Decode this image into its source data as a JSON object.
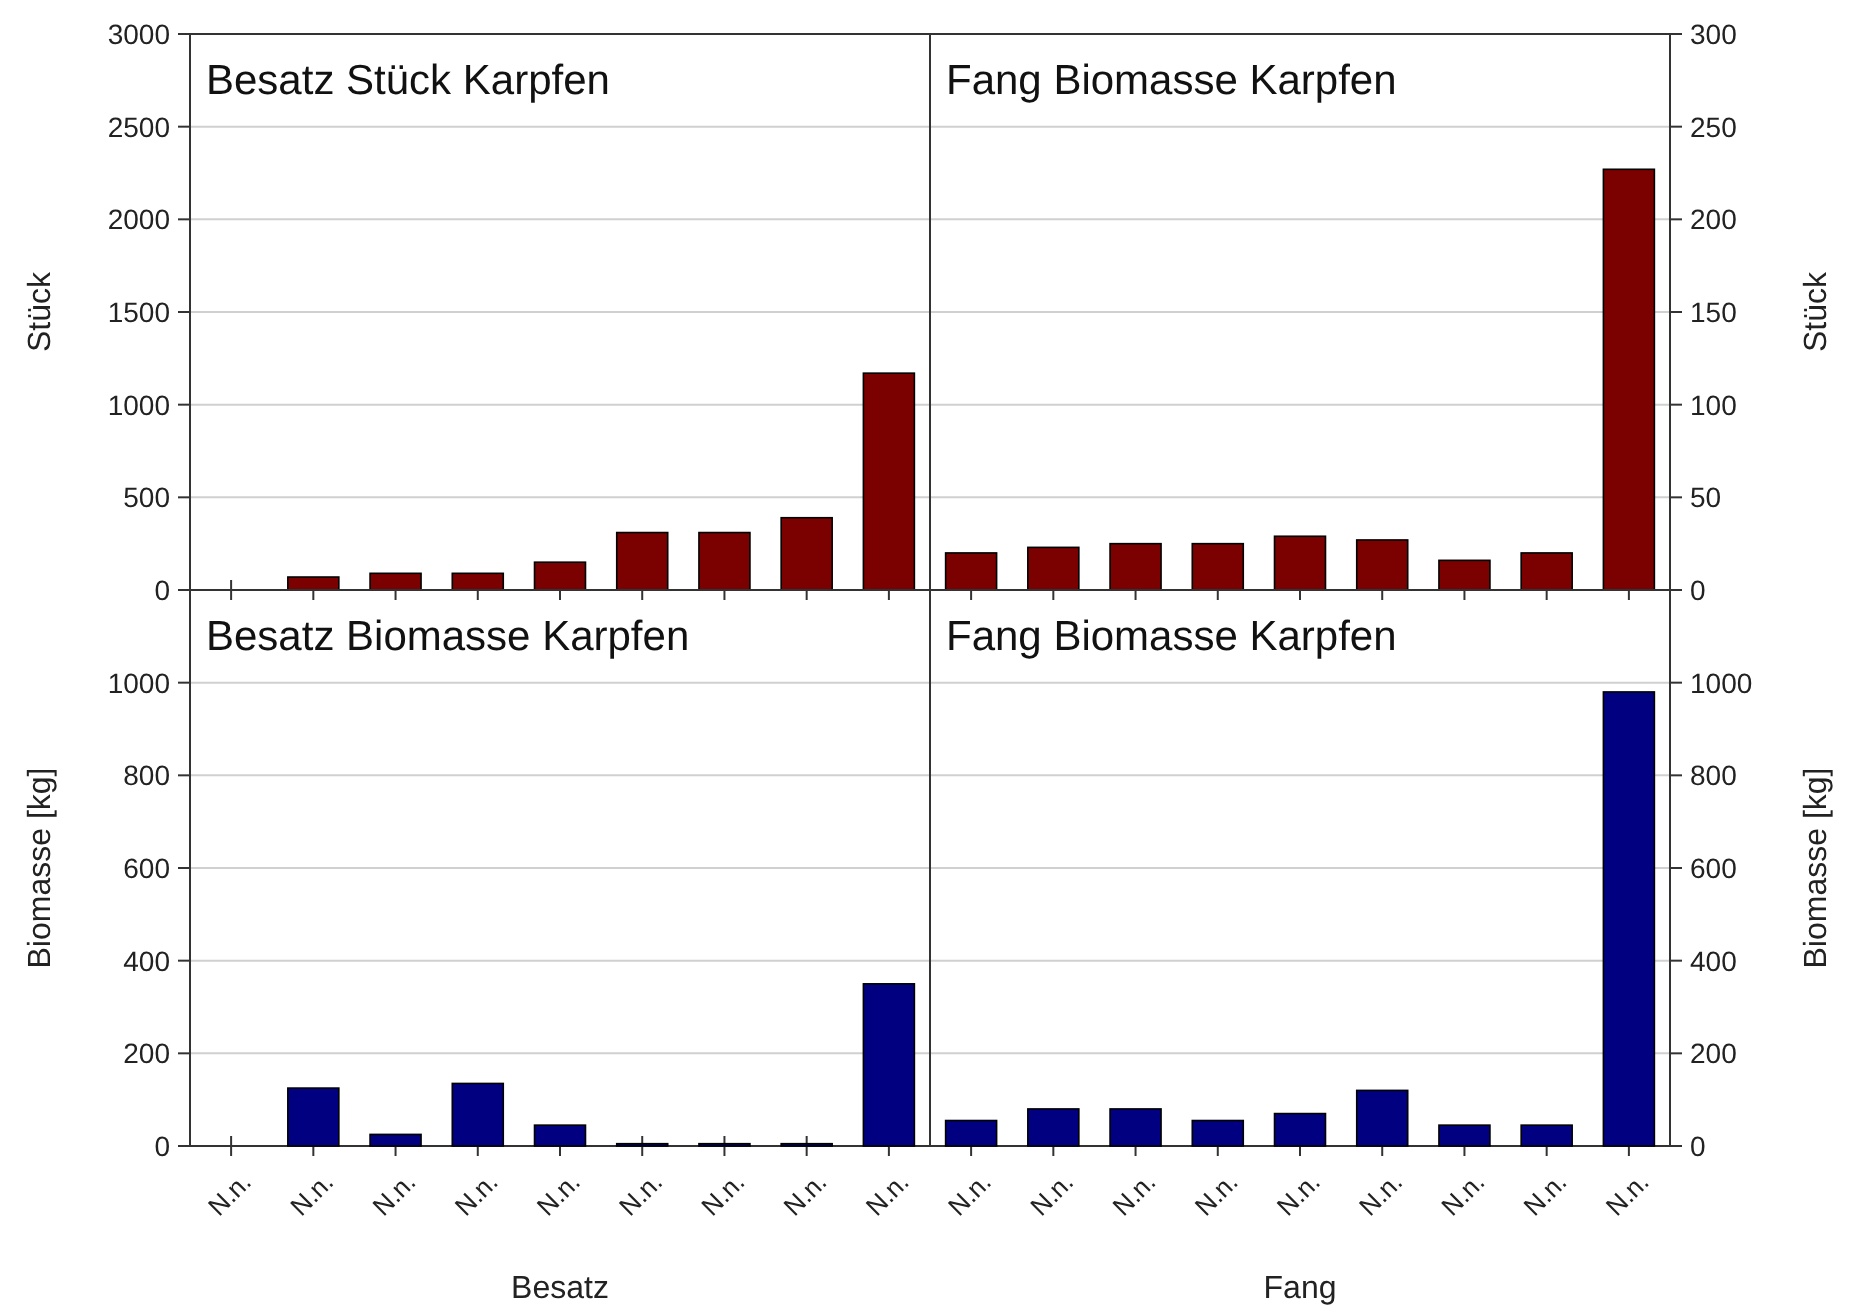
{
  "chart_data": [
    {
      "type": "bar",
      "title": "Besatz Stück Karpfen",
      "ylabel": "Stück",
      "categories": [
        null,
        null,
        null,
        null,
        null,
        null,
        null,
        null,
        null
      ],
      "series": [
        {
          "color": "#7b0000",
          "values": [
            0,
            70,
            90,
            90,
            150,
            310,
            310,
            390,
            1170
          ]
        }
      ],
      "ylim": [
        0,
        3000
      ],
      "yticks": [
        0,
        500,
        1000,
        1500,
        2000,
        2500,
        3000
      ],
      "grid": "y",
      "tick_labels": "y"
    },
    {
      "type": "bar",
      "title": "Fang Biomasse Karpfen",
      "ylabel": "Stück",
      "categories": [
        null,
        null,
        null,
        null,
        null,
        null,
        null,
        null,
        null
      ],
      "series": [
        {
          "color": "#7b0000",
          "values": [
            20,
            23,
            25,
            25,
            29,
            27,
            16,
            20,
            227
          ]
        }
      ],
      "ylim": [
        0,
        300
      ],
      "yticks": [
        0,
        50,
        100,
        150,
        200,
        250,
        300
      ],
      "grid": "y",
      "tick_labels": "y"
    },
    {
      "type": "bar",
      "title": "Besatz Biomasse Karpfen",
      "xlabel": "Besatz",
      "ylabel": "Biomasse [kg]",
      "categories": [
        "N.n.",
        "N.n.",
        "N.n.",
        "N.n.",
        "N.n.",
        "N.n.",
        "N.n.",
        "N.n.",
        "N.n."
      ],
      "series": [
        {
          "color": "#000080",
          "values": [
            0,
            125,
            25,
            135,
            45,
            5,
            5,
            5,
            350
          ]
        }
      ],
      "ylim": [
        0,
        1200
      ],
      "yticks": [
        0,
        200,
        400,
        600,
        800,
        1000
      ],
      "grid": "y"
    },
    {
      "type": "bar",
      "title": "Fang Biomasse Karpfen",
      "xlabel": "Fang",
      "ylabel": "Biomasse [kg]",
      "categories": [
        "N.n.",
        "N.n.",
        "N.n.",
        "N.n.",
        "N.n.",
        "N.n.",
        "N.n.",
        "N.n.",
        "N.n."
      ],
      "series": [
        {
          "color": "#000080",
          "values": [
            55,
            80,
            80,
            55,
            70,
            120,
            45,
            45,
            980
          ]
        }
      ],
      "ylim": [
        0,
        1200
      ],
      "yticks": [
        0,
        200,
        400,
        600,
        800,
        1000
      ],
      "grid": "y"
    }
  ]
}
